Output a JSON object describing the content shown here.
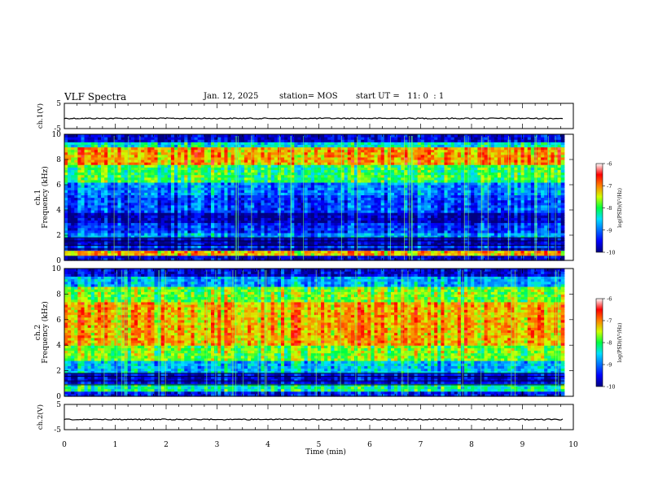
{
  "header": {
    "title": "VLF Spectra",
    "date": "Jan. 12, 2025",
    "station": "station= MOS",
    "start": "start UT =   11: 0  : 1"
  },
  "chart_data": [
    {
      "type": "line",
      "name": "waveform-ch1",
      "ylabel": "ch.1(V)",
      "ylim": [
        -5,
        5
      ],
      "yticks": [
        5,
        -5
      ],
      "xlim": [
        0,
        10
      ],
      "x": [
        0,
        9.82
      ],
      "y": [
        0,
        0
      ]
    },
    {
      "type": "heatmap",
      "name": "spectrogram-ch1",
      "ylabel_1": "ch.1",
      "ylabel_2": "Frequency (kHz)",
      "ylim": [
        0,
        10
      ],
      "yticks": [
        0,
        2,
        4,
        6,
        8,
        10
      ],
      "xlim": [
        0,
        10
      ],
      "data_end_min": 9.82,
      "colorbar": {
        "label": "log(PSD)(V²/Hz)",
        "range": [
          -10,
          -6
        ],
        "ticks": [
          "-6",
          "-7",
          "-8",
          "-9",
          "-10"
        ]
      },
      "bands_khz": [
        {
          "from": 0.0,
          "to": 0.45,
          "level": -9.7
        },
        {
          "from": 0.45,
          "to": 0.8,
          "level": -7.2
        },
        {
          "from": 0.8,
          "to": 1.0,
          "level": -9.6
        },
        {
          "from": 1.0,
          "to": 1.3,
          "level": -9.3
        },
        {
          "from": 1.3,
          "to": 1.9,
          "level": -9.8
        },
        {
          "from": 1.9,
          "to": 2.3,
          "level": -8.8
        },
        {
          "from": 2.3,
          "to": 3.0,
          "level": -9.3
        },
        {
          "from": 3.0,
          "to": 3.8,
          "level": -9.8
        },
        {
          "from": 3.8,
          "to": 5.2,
          "level": -9.2
        },
        {
          "from": 5.2,
          "to": 6.2,
          "level": -8.9
        },
        {
          "from": 6.2,
          "to": 7.6,
          "level": -8.0
        },
        {
          "from": 7.6,
          "to": 9.1,
          "level": -7.1
        },
        {
          "from": 9.1,
          "to": 9.5,
          "level": -8.4
        },
        {
          "from": 9.5,
          "to": 10.0,
          "level": -9.6
        }
      ]
    },
    {
      "type": "heatmap",
      "name": "spectrogram-ch2",
      "ylabel_1": "ch.2",
      "ylabel_2": "Frequency (kHz)",
      "ylim": [
        0,
        10
      ],
      "yticks": [
        0,
        2,
        4,
        6,
        8,
        10
      ],
      "xlim": [
        0,
        10
      ],
      "data_end_min": 9.82,
      "colorbar": {
        "label": "log(PSD)(V²/Hz)",
        "range": [
          -10,
          -6
        ],
        "ticks": [
          "-6",
          "-7",
          "-8",
          "-9",
          "-10"
        ]
      },
      "bands_khz": [
        {
          "from": 0.0,
          "to": 0.5,
          "level": -9.4
        },
        {
          "from": 0.5,
          "to": 1.0,
          "level": -8.2
        },
        {
          "from": 1.0,
          "to": 1.9,
          "level": -9.6
        },
        {
          "from": 1.9,
          "to": 2.8,
          "level": -8.6
        },
        {
          "from": 2.8,
          "to": 4.0,
          "level": -7.7
        },
        {
          "from": 4.0,
          "to": 7.5,
          "level": -7.1
        },
        {
          "from": 7.5,
          "to": 8.7,
          "level": -7.7
        },
        {
          "from": 8.7,
          "to": 9.4,
          "level": -8.7
        },
        {
          "from": 9.4,
          "to": 10.0,
          "level": -9.6
        }
      ]
    },
    {
      "type": "line",
      "name": "waveform-ch2",
      "ylabel": "ch.2(V)",
      "ylim": [
        -5,
        5
      ],
      "yticks": [
        5,
        -5
      ],
      "xlim": [
        0,
        10
      ],
      "x": [
        0,
        9.82
      ],
      "y": [
        0,
        0
      ]
    }
  ],
  "xaxis": {
    "label": "Time (min)",
    "ticks": [
      "0",
      "1",
      "2",
      "3",
      "4",
      "5",
      "6",
      "7",
      "8",
      "9",
      "10"
    ]
  },
  "colors": {
    "frame": "#000000",
    "background": "#ffffff"
  }
}
